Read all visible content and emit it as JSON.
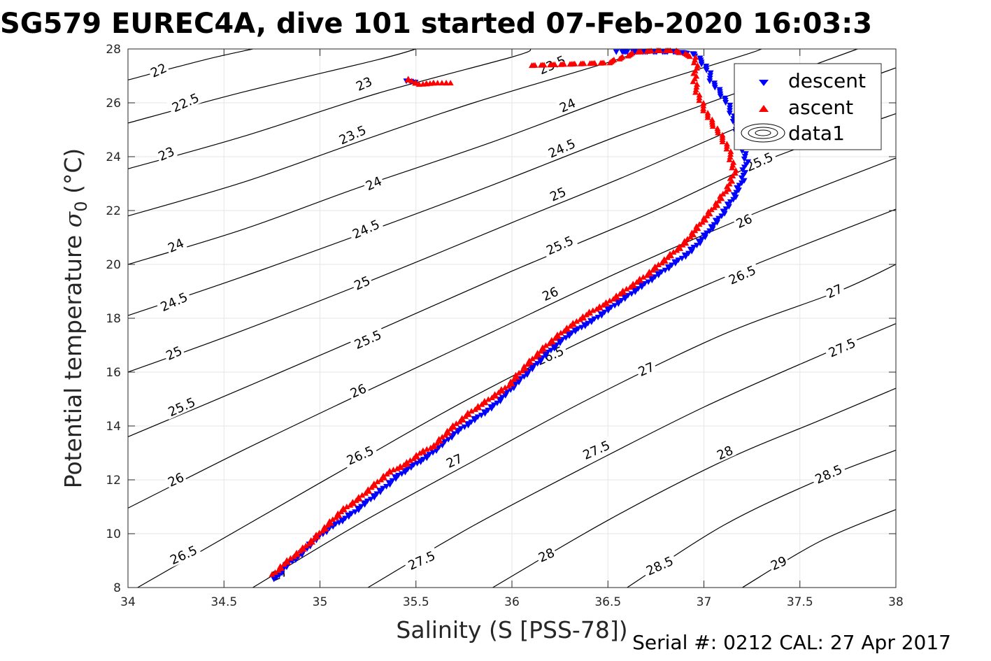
{
  "chart_data": {
    "type": "scatter",
    "title": "SG579 EUREC4A, dive 101 started 07-Feb-2020 16:03:3",
    "xlabel": "Salinity (S [PSS-78])",
    "ylabel_main": "Potential temperature ",
    "ylabel_symbol": "σ",
    "ylabel_subscript": "0",
    "ylabel_unit": " (°C)",
    "xlim": [
      34,
      38
    ],
    "ylim": [
      8,
      28
    ],
    "xticks": [
      "34",
      "34.5",
      "35",
      "35.5",
      "36",
      "36.5",
      "37",
      "37.5",
      "38"
    ],
    "yticks": [
      "8",
      "10",
      "12",
      "14",
      "16",
      "18",
      "20",
      "22",
      "24",
      "26",
      "28"
    ],
    "grid": true,
    "legend_position": "top-right",
    "legend": [
      "descent",
      "ascent",
      "data1"
    ],
    "colors": {
      "descent": "#0000ff",
      "ascent": "#ff0000",
      "contour": "#000000",
      "grid": "#e6e6e6"
    },
    "series": [
      {
        "name": "descent",
        "marker": "triangle-down",
        "points": [
          [
            34.77,
            8.3
          ],
          [
            34.8,
            8.6
          ],
          [
            34.84,
            8.9
          ],
          [
            34.9,
            9.2
          ],
          [
            34.95,
            9.6
          ],
          [
            35.0,
            9.9
          ],
          [
            35.05,
            10.2
          ],
          [
            35.12,
            10.5
          ],
          [
            35.18,
            10.8
          ],
          [
            35.25,
            11.2
          ],
          [
            35.32,
            11.6
          ],
          [
            35.4,
            12.1
          ],
          [
            35.48,
            12.5
          ],
          [
            35.55,
            12.8
          ],
          [
            35.62,
            13.2
          ],
          [
            35.7,
            13.7
          ],
          [
            35.8,
            14.2
          ],
          [
            35.9,
            14.7
          ],
          [
            36.0,
            15.4
          ],
          [
            36.1,
            16.1
          ],
          [
            36.2,
            16.8
          ],
          [
            36.3,
            17.4
          ],
          [
            36.42,
            17.9
          ],
          [
            36.52,
            18.4
          ],
          [
            36.62,
            18.9
          ],
          [
            36.72,
            19.4
          ],
          [
            36.82,
            19.9
          ],
          [
            36.92,
            20.4
          ],
          [
            37.0,
            21.0
          ],
          [
            37.08,
            21.7
          ],
          [
            37.15,
            22.4
          ],
          [
            37.2,
            23.1
          ],
          [
            37.22,
            23.8
          ],
          [
            37.2,
            24.5
          ],
          [
            37.17,
            25.0
          ],
          [
            37.15,
            25.5
          ],
          [
            37.12,
            26.0
          ],
          [
            37.08,
            26.4
          ],
          [
            37.04,
            26.8
          ],
          [
            37.02,
            27.2
          ],
          [
            36.99,
            27.5
          ],
          [
            36.95,
            27.8
          ],
          [
            36.85,
            27.88
          ],
          [
            36.7,
            27.88
          ],
          [
            36.55,
            27.88
          ],
          [
            35.45,
            26.8
          ],
          [
            35.5,
            26.75
          ]
        ]
      },
      {
        "name": "ascent",
        "marker": "triangle-up",
        "points": [
          [
            34.76,
            8.5
          ],
          [
            34.8,
            8.8
          ],
          [
            34.85,
            9.1
          ],
          [
            34.92,
            9.5
          ],
          [
            34.98,
            9.9
          ],
          [
            35.05,
            10.4
          ],
          [
            35.12,
            10.9
          ],
          [
            35.2,
            11.3
          ],
          [
            35.28,
            11.8
          ],
          [
            35.36,
            12.3
          ],
          [
            35.45,
            12.6
          ],
          [
            35.52,
            13.0
          ],
          [
            35.6,
            13.3
          ],
          [
            35.68,
            13.9
          ],
          [
            35.78,
            14.5
          ],
          [
            35.88,
            15.0
          ],
          [
            35.98,
            15.5
          ],
          [
            36.08,
            16.3
          ],
          [
            36.18,
            17.0
          ],
          [
            36.28,
            17.6
          ],
          [
            36.4,
            18.2
          ],
          [
            36.5,
            18.6
          ],
          [
            36.6,
            19.1
          ],
          [
            36.7,
            19.6
          ],
          [
            36.8,
            20.2
          ],
          [
            36.9,
            20.8
          ],
          [
            36.98,
            21.5
          ],
          [
            37.06,
            22.2
          ],
          [
            37.12,
            22.8
          ],
          [
            37.16,
            23.4
          ],
          [
            37.14,
            24.0
          ],
          [
            37.12,
            24.4
          ],
          [
            37.08,
            24.9
          ],
          [
            37.04,
            25.3
          ],
          [
            37.0,
            25.8
          ],
          [
            36.97,
            26.3
          ],
          [
            36.95,
            26.8
          ],
          [
            36.96,
            27.3
          ],
          [
            36.95,
            27.7
          ],
          [
            36.85,
            27.95
          ],
          [
            36.75,
            27.95
          ],
          [
            36.65,
            27.9
          ],
          [
            36.5,
            27.5
          ],
          [
            36.1,
            27.4
          ],
          [
            35.45,
            26.9
          ],
          [
            35.52,
            26.7
          ],
          [
            35.6,
            26.75
          ],
          [
            35.68,
            26.75
          ]
        ]
      }
    ],
    "isopycnal_labels": [
      "22",
      "22.5",
      "23",
      "23.5",
      "24",
      "24.5",
      "25",
      "25.5",
      "26",
      "26.5",
      "27",
      "27.5",
      "28",
      "28.5",
      "29"
    ],
    "contour_lines": [
      {
        "label": "22",
        "points": [
          [
            34.0,
            26.85
          ],
          [
            34.4,
            27.6
          ],
          [
            34.65,
            28.0
          ]
        ]
      },
      {
        "label": "22.5",
        "points": [
          [
            34.0,
            25.25
          ],
          [
            34.6,
            26.4
          ],
          [
            35.3,
            27.6
          ],
          [
            35.5,
            28.0
          ]
        ]
      },
      {
        "label": "23",
        "points": [
          [
            34.0,
            23.55
          ],
          [
            34.6,
            24.75
          ],
          [
            35.3,
            26.35
          ],
          [
            36.0,
            27.7
          ],
          [
            36.1,
            28.0
          ]
        ]
      },
      {
        "label": "23.5",
        "points": [
          [
            34.0,
            21.8
          ],
          [
            34.6,
            23.05
          ],
          [
            35.2,
            24.55
          ],
          [
            35.8,
            26.0
          ],
          [
            36.5,
            27.5
          ],
          [
            36.7,
            28.0
          ]
        ]
      },
      {
        "label": "24",
        "points": [
          [
            34.0,
            20.0
          ],
          [
            34.6,
            21.3
          ],
          [
            35.2,
            22.85
          ],
          [
            35.9,
            24.55
          ],
          [
            36.6,
            26.4
          ],
          [
            37.2,
            27.75
          ],
          [
            37.3,
            28.0
          ]
        ]
      },
      {
        "label": "24.5",
        "points": [
          [
            34.0,
            18.1
          ],
          [
            34.6,
            19.55
          ],
          [
            35.3,
            21.35
          ],
          [
            35.9,
            22.95
          ],
          [
            36.6,
            24.9
          ],
          [
            37.3,
            26.7
          ],
          [
            37.8,
            28.0
          ]
        ]
      },
      {
        "label": "25",
        "points": [
          [
            34.0,
            16.0
          ],
          [
            34.6,
            17.55
          ],
          [
            35.3,
            19.5
          ],
          [
            36.0,
            21.55
          ],
          [
            36.6,
            23.3
          ],
          [
            37.3,
            25.45
          ],
          [
            38.0,
            27.3
          ]
        ]
      },
      {
        "label": "25.5",
        "points": [
          [
            34.0,
            13.6
          ],
          [
            34.6,
            15.4
          ],
          [
            35.3,
            17.55
          ],
          [
            36.0,
            19.75
          ],
          [
            36.7,
            21.85
          ],
          [
            37.3,
            23.8
          ],
          [
            38.0,
            25.6
          ]
        ]
      },
      {
        "label": "26",
        "points": [
          [
            34.0,
            10.95
          ],
          [
            34.6,
            13.1
          ],
          [
            35.2,
            15.15
          ],
          [
            35.9,
            17.5
          ],
          [
            36.6,
            19.85
          ],
          [
            37.3,
            22.0
          ],
          [
            38.0,
            23.95
          ]
        ]
      },
      {
        "label": "26.5",
        "points": [
          [
            34.05,
            8.0
          ],
          [
            34.6,
            10.25
          ],
          [
            35.2,
            12.7
          ],
          [
            35.8,
            15.1
          ],
          [
            36.5,
            17.6
          ],
          [
            37.2,
            19.8
          ],
          [
            38.0,
            22.05
          ]
        ]
      },
      {
        "label": "27",
        "points": [
          [
            34.65,
            8.0
          ],
          [
            35.2,
            10.35
          ],
          [
            35.8,
            12.7
          ],
          [
            36.4,
            15.0
          ],
          [
            37.1,
            17.4
          ],
          [
            37.7,
            19.0
          ],
          [
            38.0,
            20.0
          ]
        ]
      },
      {
        "label": "27.5",
        "points": [
          [
            35.25,
            8.0
          ],
          [
            35.8,
            10.3
          ],
          [
            36.4,
            12.55
          ],
          [
            37.0,
            14.7
          ],
          [
            37.6,
            16.6
          ],
          [
            38.0,
            17.8
          ]
        ]
      },
      {
        "label": "28",
        "points": [
          [
            35.9,
            8.0
          ],
          [
            36.5,
            10.5
          ],
          [
            37.1,
            12.7
          ],
          [
            37.6,
            14.2
          ],
          [
            38.0,
            15.4
          ]
        ]
      },
      {
        "label": "28.5",
        "points": [
          [
            36.6,
            8.0
          ],
          [
            37.1,
            10.3
          ],
          [
            37.6,
            12.0
          ],
          [
            38.0,
            13.1
          ]
        ]
      },
      {
        "label": "29",
        "points": [
          [
            37.2,
            8.0
          ],
          [
            37.6,
            9.7
          ],
          [
            38.0,
            10.9
          ]
        ]
      }
    ],
    "contour_label_positions": [
      {
        "label": "22",
        "x": 34.16,
        "y": 27.2
      },
      {
        "label": "22.5",
        "x": 34.3,
        "y": 26.0
      },
      {
        "label": "23",
        "x": 34.2,
        "y": 24.1
      },
      {
        "label": "24",
        "x": 34.25,
        "y": 20.7
      },
      {
        "label": "24.5",
        "x": 34.24,
        "y": 18.6
      },
      {
        "label": "25",
        "x": 34.24,
        "y": 16.7
      },
      {
        "label": "25.5",
        "x": 34.28,
        "y": 14.7
      },
      {
        "label": "26",
        "x": 34.25,
        "y": 12.0
      },
      {
        "label": "26.5",
        "x": 34.29,
        "y": 9.2
      },
      {
        "label": "23",
        "x": 35.23,
        "y": 26.7
      },
      {
        "label": "23.5",
        "x": 35.17,
        "y": 24.8
      },
      {
        "label": "24",
        "x": 35.28,
        "y": 23.0
      },
      {
        "label": "24.5",
        "x": 35.24,
        "y": 21.3
      },
      {
        "label": "25",
        "x": 35.22,
        "y": 19.3
      },
      {
        "label": "25.5",
        "x": 35.25,
        "y": 17.2
      },
      {
        "label": "26",
        "x": 35.2,
        "y": 15.3
      },
      {
        "label": "26.5",
        "x": 35.21,
        "y": 12.9
      },
      {
        "label": "27",
        "x": 34.79,
        "y": 8.5
      },
      {
        "label": "23.5",
        "x": 36.21,
        "y": 27.4
      },
      {
        "label": "24",
        "x": 36.29,
        "y": 25.9
      },
      {
        "label": "24.5",
        "x": 36.26,
        "y": 24.3
      },
      {
        "label": "25",
        "x": 36.24,
        "y": 22.6
      },
      {
        "label": "25.5",
        "x": 36.25,
        "y": 20.7
      },
      {
        "label": "26",
        "x": 36.2,
        "y": 18.9
      },
      {
        "label": "26.5",
        "x": 36.2,
        "y": 16.6
      },
      {
        "label": "27",
        "x": 35.7,
        "y": 12.7
      },
      {
        "label": "27.5",
        "x": 35.53,
        "y": 9.0
      },
      {
        "label": "25.5",
        "x": 37.29,
        "y": 23.8
      },
      {
        "label": "26",
        "x": 37.21,
        "y": 21.6
      },
      {
        "label": "26.5",
        "x": 37.2,
        "y": 19.6
      },
      {
        "label": "27",
        "x": 37.68,
        "y": 19.0
      },
      {
        "label": "27",
        "x": 36.7,
        "y": 16.1
      },
      {
        "label": "27.5",
        "x": 37.72,
        "y": 16.9
      },
      {
        "label": "27.5",
        "x": 36.44,
        "y": 13.1
      },
      {
        "label": "28",
        "x": 37.11,
        "y": 13.0
      },
      {
        "label": "28",
        "x": 36.18,
        "y": 9.2
      },
      {
        "label": "28.5",
        "x": 37.65,
        "y": 12.2
      },
      {
        "label": "28.5",
        "x": 36.77,
        "y": 8.8
      },
      {
        "label": "29",
        "x": 37.39,
        "y": 8.9
      }
    ]
  },
  "footer": {
    "serial": "Serial #: 0212  CAL: 27 Apr 2017"
  }
}
